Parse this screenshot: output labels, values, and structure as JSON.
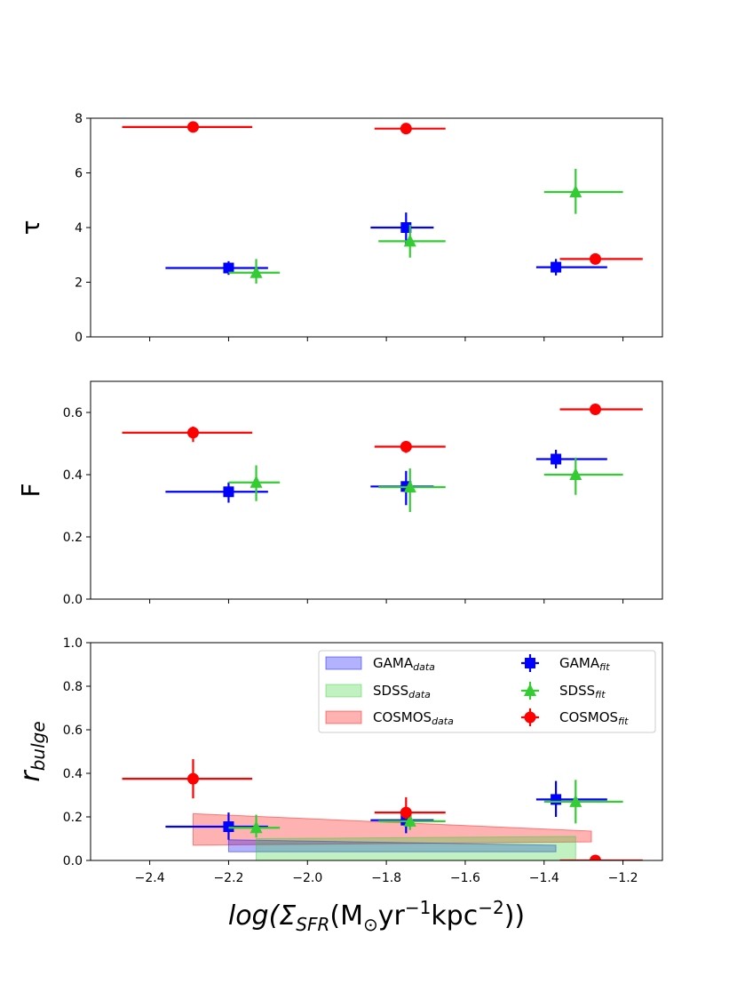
{
  "chart_data": [
    {
      "type": "scatter",
      "panel": "tau",
      "ylabel": "τ",
      "ylim": [
        0,
        8
      ],
      "yticks": [
        0,
        2,
        4,
        6,
        8
      ],
      "ytick_labels": [
        "0",
        "2",
        "4",
        "6",
        "8"
      ],
      "xlim": [
        -2.55,
        -1.1
      ],
      "series": [
        {
          "name": "GAMA_fit",
          "color": "#0000ff",
          "marker": "square",
          "points": [
            {
              "x": -2.2,
              "y": 2.52,
              "xerr": [
                0.16,
                0.1
              ],
              "yerr": [
                0.25,
                0.25
              ]
            },
            {
              "x": -1.75,
              "y": 4.0,
              "xerr": [
                0.09,
                0.07
              ],
              "yerr": [
                0.6,
                0.55
              ]
            },
            {
              "x": -1.37,
              "y": 2.55,
              "xerr": [
                0.05,
                0.13
              ],
              "yerr": [
                0.3,
                0.3
              ]
            }
          ]
        },
        {
          "name": "SDSS_fit",
          "color": "#33cc33",
          "marker": "triangle",
          "points": [
            {
              "x": -2.13,
              "y": 2.35,
              "xerr": [
                0.07,
                0.06
              ],
              "yerr": [
                0.4,
                0.5
              ]
            },
            {
              "x": -1.74,
              "y": 3.5,
              "xerr": [
                0.08,
                0.09
              ],
              "yerr": [
                0.6,
                0.6
              ]
            },
            {
              "x": -1.32,
              "y": 5.3,
              "xerr": [
                0.08,
                0.12
              ],
              "yerr": [
                0.8,
                0.85
              ]
            }
          ]
        },
        {
          "name": "COSMOS_fit",
          "color": "#ff0000",
          "marker": "circle",
          "points": [
            {
              "x": -2.29,
              "y": 7.68,
              "xerr": [
                0.18,
                0.15
              ],
              "yerr": [
                0.1,
                0.1
              ]
            },
            {
              "x": -1.75,
              "y": 7.62,
              "xerr": [
                0.08,
                0.1
              ],
              "yerr": [
                0.2,
                0.2
              ]
            },
            {
              "x": -1.27,
              "y": 2.85,
              "xerr": [
                0.09,
                0.12
              ],
              "yerr": [
                0.08,
                0.08
              ]
            }
          ]
        }
      ]
    },
    {
      "type": "scatter",
      "panel": "F",
      "ylabel": "F",
      "ylim": [
        0,
        0.7
      ],
      "yticks": [
        0,
        0.2,
        0.4,
        0.6
      ],
      "ytick_labels": [
        "0.0",
        "0.2",
        "0.4",
        "0.6"
      ],
      "xlim": [
        -2.55,
        -1.1
      ],
      "series": [
        {
          "name": "GAMA_fit",
          "color": "#0000ff",
          "marker": "square",
          "points": [
            {
              "x": -2.2,
              "y": 0.345,
              "xerr": [
                0.16,
                0.1
              ],
              "yerr": [
                0.035,
                0.03
              ]
            },
            {
              "x": -1.75,
              "y": 0.362,
              "xerr": [
                0.09,
                0.07
              ],
              "yerr": [
                0.06,
                0.05
              ]
            },
            {
              "x": -1.37,
              "y": 0.45,
              "xerr": [
                0.05,
                0.13
              ],
              "yerr": [
                0.03,
                0.03
              ]
            }
          ]
        },
        {
          "name": "SDSS_fit",
          "color": "#33cc33",
          "marker": "triangle",
          "points": [
            {
              "x": -2.13,
              "y": 0.375,
              "xerr": [
                0.07,
                0.06
              ],
              "yerr": [
                0.06,
                0.055
              ]
            },
            {
              "x": -1.74,
              "y": 0.36,
              "xerr": [
                0.08,
                0.09
              ],
              "yerr": [
                0.08,
                0.06
              ]
            },
            {
              "x": -1.32,
              "y": 0.4,
              "xerr": [
                0.08,
                0.12
              ],
              "yerr": [
                0.065,
                0.055
              ]
            }
          ]
        },
        {
          "name": "COSMOS_fit",
          "color": "#ff0000",
          "marker": "circle",
          "points": [
            {
              "x": -2.29,
              "y": 0.535,
              "xerr": [
                0.18,
                0.15
              ],
              "yerr": [
                0.03,
                0.02
              ]
            },
            {
              "x": -1.75,
              "y": 0.49,
              "xerr": [
                0.08,
                0.1
              ],
              "yerr": [
                0.02,
                0.015
              ]
            },
            {
              "x": -1.27,
              "y": 0.61,
              "xerr": [
                0.09,
                0.12
              ],
              "yerr": [
                0.008,
                0.008
              ]
            }
          ]
        }
      ]
    },
    {
      "type": "scatter",
      "panel": "r_bulge",
      "ylabel": "r",
      "ylabel_sub": "bulge",
      "xlabel": "log(Σ",
      "xlabel_sub": "SFR",
      "xlabel_rest": "(M",
      "xlabel_sun": "⊙",
      "xlabel_unit": "yr",
      "xlabel_exp1": "−1",
      "xlabel_unit2": "kpc",
      "xlabel_exp2": "−2",
      "xlabel_end": "))",
      "ylim": [
        0,
        1.0
      ],
      "yticks": [
        0,
        0.2,
        0.4,
        0.6,
        0.8,
        1.0
      ],
      "ytick_labels": [
        "0.0",
        "0.2",
        "0.4",
        "0.6",
        "0.8",
        "1.0"
      ],
      "xlim": [
        -2.55,
        -1.1
      ],
      "xticks": [
        -2.4,
        -2.2,
        -2.0,
        -1.8,
        -1.6,
        -1.4,
        -1.2
      ],
      "xtick_labels": [
        "−2.4",
        "−2.2",
        "−2.0",
        "−1.8",
        "−1.6",
        "−1.4",
        "−1.2"
      ],
      "bands": [
        {
          "name": "COSMOS_data",
          "color": "#ff0000",
          "opacity": 0.3,
          "x": [
            -2.29,
            -1.28
          ],
          "lower": [
            0.07,
            0.085
          ],
          "upper": [
            0.215,
            0.135
          ]
        },
        {
          "name": "GAMA_data",
          "color": "#0000ff",
          "opacity": 0.3,
          "x": [
            -2.2,
            -1.37
          ],
          "lower": [
            0.04,
            0.04
          ],
          "upper": [
            0.095,
            0.07
          ]
        },
        {
          "name": "SDSS_data",
          "color": "#33cc33",
          "opacity": 0.3,
          "x": [
            -2.13,
            -1.32
          ],
          "lower": [
            0.0,
            0.0
          ],
          "upper": [
            0.1,
            0.11
          ]
        }
      ],
      "series": [
        {
          "name": "GAMA_fit",
          "color": "#0000ff",
          "marker": "square",
          "points": [
            {
              "x": -2.2,
              "y": 0.155,
              "xerr": [
                0.16,
                0.1
              ],
              "yerr": [
                0.06,
                0.065
              ]
            },
            {
              "x": -1.75,
              "y": 0.185,
              "xerr": [
                0.09,
                0.07
              ],
              "yerr": [
                0.06,
                0.035
              ]
            },
            {
              "x": -1.37,
              "y": 0.28,
              "xerr": [
                0.05,
                0.13
              ],
              "yerr": [
                0.08,
                0.085
              ]
            }
          ]
        },
        {
          "name": "SDSS_fit",
          "color": "#33cc33",
          "marker": "triangle",
          "points": [
            {
              "x": -2.13,
              "y": 0.15,
              "xerr": [
                0.07,
                0.06
              ],
              "yerr": [
                0.045,
                0.06
              ]
            },
            {
              "x": -1.74,
              "y": 0.18,
              "xerr": [
                0.08,
                0.09
              ],
              "yerr": [
                0.04,
                0.04
              ]
            },
            {
              "x": -1.32,
              "y": 0.27,
              "xerr": [
                0.08,
                0.12
              ],
              "yerr": [
                0.1,
                0.1
              ]
            }
          ]
        },
        {
          "name": "COSMOS_fit",
          "color": "#ff0000",
          "marker": "circle",
          "points": [
            {
              "x": -2.29,
              "y": 0.375,
              "xerr": [
                0.18,
                0.15
              ],
              "yerr": [
                0.09,
                0.09
              ]
            },
            {
              "x": -1.75,
              "y": 0.22,
              "xerr": [
                0.08,
                0.1
              ],
              "yerr": [
                0.03,
                0.07
              ]
            },
            {
              "x": -1.27,
              "y": 0.0,
              "xerr": [
                0.09,
                0.12
              ],
              "yerr": [
                0.005,
                0.005
              ]
            }
          ]
        }
      ],
      "legend": {
        "location": "upper-right",
        "left_entries": [
          {
            "base": "GAMA",
            "sub": "data",
            "color": "#0000ff"
          },
          {
            "base": "SDSS",
            "sub": "data",
            "color": "#33cc33"
          },
          {
            "base": "COSMOS",
            "sub": "data",
            "color": "#ff0000"
          }
        ],
        "right_entries": [
          {
            "base": "GAMA",
            "sub": "fit",
            "color": "#0000ff",
            "marker": "square"
          },
          {
            "base": "SDSS",
            "sub": "fit",
            "color": "#33cc33",
            "marker": "triangle"
          },
          {
            "base": "COSMOS",
            "sub": "fit",
            "color": "#ff0000",
            "marker": "circle"
          }
        ]
      }
    }
  ]
}
